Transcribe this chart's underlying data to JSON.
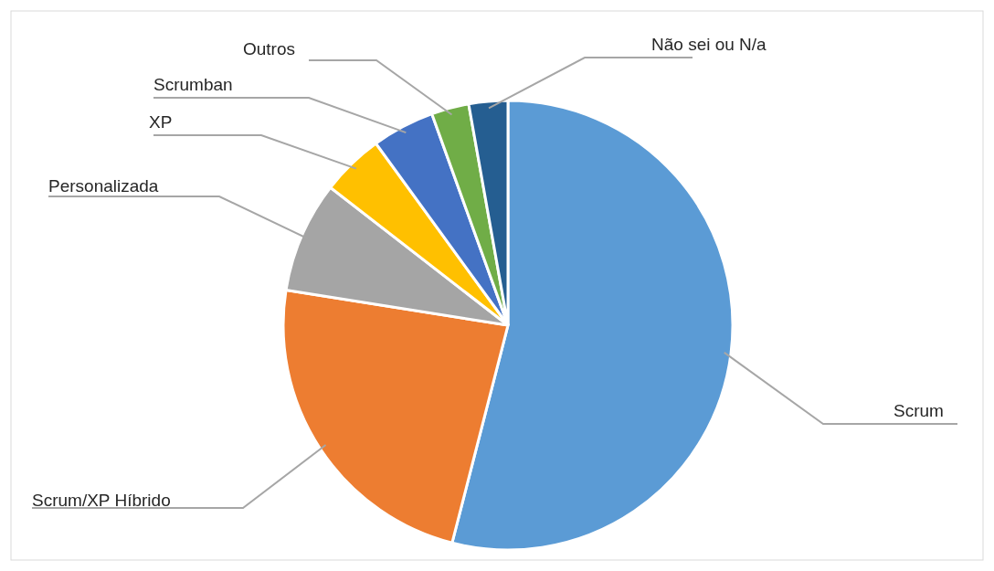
{
  "chart_data": {
    "type": "pie",
    "categories": [
      "Scrum",
      "Scrum/XP Híbrido",
      "Personalizada",
      "XP",
      "Scrumban",
      "Outros",
      "Não sei ou N/a"
    ],
    "values": [
      54,
      23.5,
      8,
      4.5,
      4.5,
      2.7,
      2.8
    ],
    "colors": [
      "#5b9bd5",
      "#ed7d31",
      "#a5a5a5",
      "#ffc000",
      "#4472c4",
      "#70ad47",
      "#255e91"
    ],
    "legend": false
  }
}
